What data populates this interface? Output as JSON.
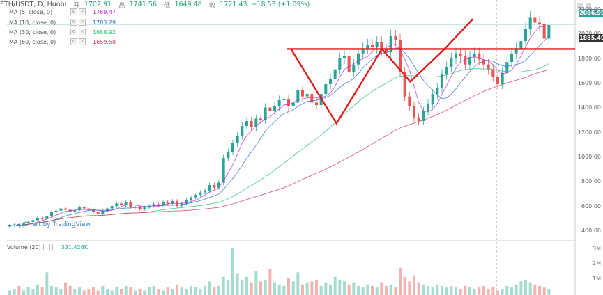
{
  "header": {
    "symbol": "ETH/USDT, D, Huobi",
    "open_label": "开",
    "open": "1702.91",
    "high_label": "高",
    "high": "1741.56",
    "low_label": "低",
    "low": "1649.48",
    "close_label": "收",
    "close": "1721.43",
    "change": "+18.53 (+1.09%)"
  },
  "indicators": [
    {
      "label": "MA (5, close, 0)",
      "value": "1769.47",
      "color": "#c02bd6"
    },
    {
      "label": "MA (10, close, 0)",
      "value": "1783.29",
      "color": "#2c6fd6"
    },
    {
      "label": "MA (30, close, 0)",
      "value": "1688.92",
      "color": "#32c27a"
    },
    {
      "label": "MA (60, close, 0)",
      "value": "1659.58",
      "color": "#d63b57"
    }
  ],
  "volume": {
    "label": "Volume (20)",
    "value": "331.426K"
  },
  "watermark": "Chart by TradingView",
  "price_tags": {
    "last": "2086.99",
    "level": "1885.49"
  },
  "colors": {
    "up": "#26a69a",
    "down": "#ef5350",
    "drawing": "#e21b1b"
  },
  "chart_data": {
    "type": "candlestick",
    "ylim": [
      350,
      2250
    ],
    "y_ticks": [
      "2200.00",
      "2000.00",
      "1800.00",
      "1600.00",
      "1400.00",
      "1200.00",
      "1000.00",
      "800.00",
      "600.00",
      "400.00"
    ],
    "volume_ticks": [
      "3M",
      "2M",
      "1M"
    ],
    "volume_ylim": [
      0,
      3300000
    ],
    "horizontal_levels": [
      2086.99,
      1885.49
    ],
    "pattern_points": [
      [
        0.5,
        1885.5
      ],
      [
        0.58,
        1280
      ],
      [
        0.66,
        1885.5
      ],
      [
        0.71,
        1620
      ],
      [
        0.77,
        1885.5
      ],
      [
        0.82,
        2130
      ]
    ],
    "closes": [
      452,
      460,
      447,
      468,
      480,
      495,
      510,
      505,
      530,
      560,
      572,
      590,
      580,
      560,
      575,
      600,
      590,
      578,
      560,
      545,
      570,
      590,
      610,
      630,
      620,
      640,
      600,
      605,
      585,
      598,
      610,
      625,
      620,
      640,
      628,
      650,
      610,
      630,
      660,
      680,
      700,
      720,
      735,
      780,
      760,
      800,
      1000,
      1050,
      1120,
      1180,
      1260,
      1300,
      1250,
      1320,
      1310,
      1410,
      1380,
      1420,
      1470,
      1480,
      1420,
      1450,
      1550,
      1500,
      1520,
      1450,
      1430,
      1520,
      1600,
      1640,
      1720,
      1810,
      1830,
      1700,
      1760,
      1850,
      1890,
      1920,
      1900,
      1940,
      1880,
      1860,
      1990,
      1960,
      1700,
      1500,
      1420,
      1330,
      1300,
      1380,
      1440,
      1520,
      1570,
      1680,
      1740,
      1810,
      1850,
      1830,
      1760,
      1820,
      1850,
      1800,
      1760,
      1720,
      1660,
      1600,
      1690,
      1780,
      1850,
      1890,
      1950,
      2050,
      2140,
      2100,
      2090,
      1970,
      2080
    ],
    "volumes": [
      0.3,
      0.4,
      0.6,
      0.3,
      0.5,
      0.4,
      0.7,
      0.5,
      1.5,
      0.6,
      0.5,
      0.4,
      0.8,
      0.6,
      0.4,
      0.5,
      0.3,
      0.4,
      0.5,
      0.3,
      0.6,
      0.4,
      0.3,
      0.5,
      0.4,
      0.6,
      0.5,
      0.3,
      0.4,
      0.3,
      0.5,
      0.6,
      0.4,
      0.3,
      0.5,
      0.4,
      0.7,
      0.5,
      0.4,
      0.6,
      0.5,
      0.4,
      0.6,
      0.9,
      0.5,
      0.6,
      1.2,
      1.0,
      3.1,
      1.4,
      1.0,
      1.2,
      0.8,
      1.6,
      0.9,
      1.0,
      1.7,
      0.8,
      0.7,
      0.6,
      1.1,
      0.9,
      1.5,
      0.7,
      0.8,
      0.9,
      1.0,
      0.6,
      0.8,
      0.7,
      1.2,
      1.0,
      0.9,
      0.7,
      0.8,
      0.6,
      0.5,
      0.7,
      0.6,
      0.5,
      0.8,
      0.6,
      0.7,
      0.5,
      1.8,
      1.2,
      0.9,
      1.3,
      0.8,
      0.7,
      0.6,
      0.5,
      0.7,
      0.6,
      0.5,
      0.6,
      0.5,
      0.4,
      0.6,
      0.5,
      0.4,
      0.5,
      0.6,
      0.4,
      0.5,
      0.3,
      0.4,
      0.6,
      0.5,
      0.7,
      0.9,
      1.0,
      0.8,
      0.7,
      0.6,
      0.5,
      0.4
    ]
  }
}
